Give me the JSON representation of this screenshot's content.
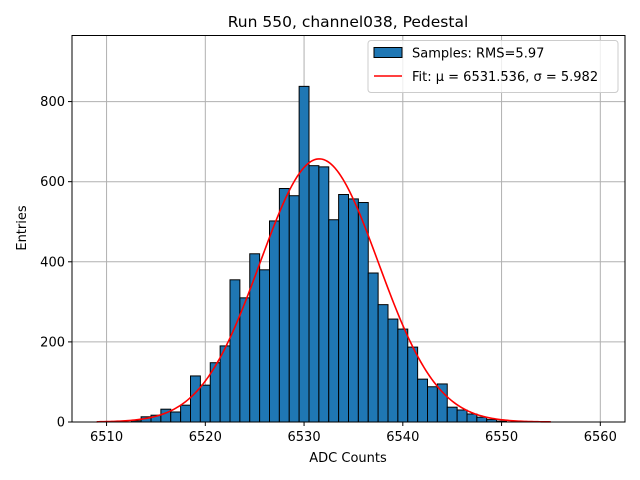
{
  "chart_data": {
    "type": "histogram",
    "title": "Run 550, channel038, Pedestal",
    "xlabel": "ADC Counts",
    "ylabel": "Entries",
    "xlim": [
      6506.5,
      6562.5
    ],
    "ylim": [
      0,
      965
    ],
    "xticks": [
      6510,
      6520,
      6530,
      6540,
      6550,
      6560
    ],
    "yticks": [
      0,
      200,
      400,
      600,
      800
    ],
    "grid": true,
    "legend_position": "top-right",
    "bin_width": 1,
    "bins": [
      {
        "x": 6513,
        "y": 3
      },
      {
        "x": 6514,
        "y": 13
      },
      {
        "x": 6515,
        "y": 17
      },
      {
        "x": 6516,
        "y": 32
      },
      {
        "x": 6517,
        "y": 25
      },
      {
        "x": 6518,
        "y": 42
      },
      {
        "x": 6519,
        "y": 115
      },
      {
        "x": 6520,
        "y": 92
      },
      {
        "x": 6521,
        "y": 148
      },
      {
        "x": 6522,
        "y": 190
      },
      {
        "x": 6523,
        "y": 355
      },
      {
        "x": 6524,
        "y": 310
      },
      {
        "x": 6525,
        "y": 420
      },
      {
        "x": 6526,
        "y": 380
      },
      {
        "x": 6527,
        "y": 502
      },
      {
        "x": 6528,
        "y": 583
      },
      {
        "x": 6529,
        "y": 565
      },
      {
        "x": 6530,
        "y": 838
      },
      {
        "x": 6531,
        "y": 640
      },
      {
        "x": 6532,
        "y": 637
      },
      {
        "x": 6533,
        "y": 505
      },
      {
        "x": 6534,
        "y": 568
      },
      {
        "x": 6535,
        "y": 557
      },
      {
        "x": 6536,
        "y": 548
      },
      {
        "x": 6537,
        "y": 372
      },
      {
        "x": 6538,
        "y": 293
      },
      {
        "x": 6539,
        "y": 257
      },
      {
        "x": 6540,
        "y": 232
      },
      {
        "x": 6541,
        "y": 187
      },
      {
        "x": 6542,
        "y": 107
      },
      {
        "x": 6543,
        "y": 88
      },
      {
        "x": 6544,
        "y": 95
      },
      {
        "x": 6545,
        "y": 37
      },
      {
        "x": 6546,
        "y": 30
      },
      {
        "x": 6547,
        "y": 20
      },
      {
        "x": 6548,
        "y": 12
      },
      {
        "x": 6549,
        "y": 6
      },
      {
        "x": 6550,
        "y": 2
      }
    ],
    "fit": {
      "type": "gaussian",
      "mu": 6531.536,
      "sigma": 5.982,
      "amplitude": 657,
      "x_range": [
        6509,
        6555
      ],
      "color": "#ff0000"
    },
    "series": [
      {
        "name": "Samples: RMS=5.97",
        "kind": "histogram",
        "color": "#1f77b4"
      },
      {
        "name": "Fit: μ = 6531.536, σ = 5.982",
        "kind": "line",
        "color": "#ff0000"
      }
    ]
  }
}
